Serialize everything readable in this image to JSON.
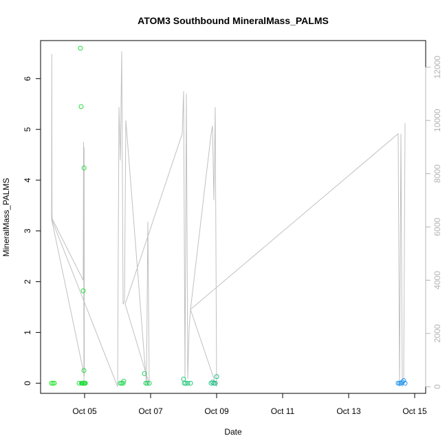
{
  "chart_data": {
    "type": "scatter",
    "title": "ATOM3 Southbound MineralMass_PALMS",
    "xlabel": "Date",
    "ylabel": "MineralMass_PALMS",
    "xlim": [
      "2017-10-03T16:00",
      "2017-10-15T08:00"
    ],
    "ylim": [
      -0.2,
      6.75
    ],
    "y2lim": [
      -250,
      13000
    ],
    "x_ticks": [
      {
        "date": "2017-10-05T00:00",
        "label": "Oct 05"
      },
      {
        "date": "2017-10-07T00:00",
        "label": "Oct 07"
      },
      {
        "date": "2017-10-09T00:00",
        "label": "Oct 09"
      },
      {
        "date": "2017-10-11T00:00",
        "label": "Oct 11"
      },
      {
        "date": "2017-10-13T00:00",
        "label": "Oct 13"
      },
      {
        "date": "2017-10-15T00:00",
        "label": "Oct 15"
      }
    ],
    "y_ticks": [
      0,
      1,
      2,
      3,
      4,
      5,
      6
    ],
    "y2_ticks": [
      0,
      2000,
      4000,
      6000,
      8000,
      10000,
      12000
    ],
    "grid": false,
    "legend": "none",
    "colors": {
      "altitude_line": "#c0c0c0",
      "right_axis": "#b4b4b4",
      "points_start": "#22e622",
      "points_end": "#1e90ff"
    },
    "points": [
      {
        "date": "2017-10-04T00:00",
        "y": 0.0
      },
      {
        "date": "2017-10-04T01:00",
        "y": 0.0
      },
      {
        "date": "2017-10-04T02:00",
        "y": 0.0
      },
      {
        "date": "2017-10-04T20:00",
        "y": 0.0
      },
      {
        "date": "2017-10-04T21:00",
        "y": 6.6
      },
      {
        "date": "2017-10-04T21:30",
        "y": 5.45
      },
      {
        "date": "2017-10-04T21:45",
        "y": 0.0
      },
      {
        "date": "2017-10-04T22:00",
        "y": 0.0
      },
      {
        "date": "2017-10-04T22:30",
        "y": 0.0
      },
      {
        "date": "2017-10-04T23:00",
        "y": 1.82
      },
      {
        "date": "2017-10-04T23:15",
        "y": 0.0
      },
      {
        "date": "2017-10-04T23:30",
        "y": 0.25
      },
      {
        "date": "2017-10-04T23:40",
        "y": 4.24
      },
      {
        "date": "2017-10-04T23:50",
        "y": 0.0
      },
      {
        "date": "2017-10-05T00:10",
        "y": 0.0
      },
      {
        "date": "2017-10-05T00:30",
        "y": 0.0
      },
      {
        "date": "2017-10-06T02:00",
        "y": 0.0
      },
      {
        "date": "2017-10-06T03:00",
        "y": 0.0
      },
      {
        "date": "2017-10-06T04:00",
        "y": 0.0
      },
      {
        "date": "2017-10-06T04:30",
        "y": 0.04
      },
      {
        "date": "2017-10-06T19:30",
        "y": 0.19
      },
      {
        "date": "2017-10-06T20:30",
        "y": 0.0
      },
      {
        "date": "2017-10-06T21:30",
        "y": 0.0
      },
      {
        "date": "2017-10-06T23:00",
        "y": 0.0
      },
      {
        "date": "2017-10-08T00:00",
        "y": 0.08
      },
      {
        "date": "2017-10-08T00:30",
        "y": 0.0
      },
      {
        "date": "2017-10-08T01:30",
        "y": 0.0
      },
      {
        "date": "2017-10-08T03:00",
        "y": 0.0
      },
      {
        "date": "2017-10-08T05:00",
        "y": 0.0
      },
      {
        "date": "2017-10-08T20:00",
        "y": 0.0
      },
      {
        "date": "2017-10-08T21:00",
        "y": 0.02
      },
      {
        "date": "2017-10-08T22:00",
        "y": 0.0
      },
      {
        "date": "2017-10-08T23:00",
        "y": 0.0
      },
      {
        "date": "2017-10-09T00:00",
        "y": 0.13
      },
      {
        "date": "2017-10-14T12:00",
        "y": 0.0
      },
      {
        "date": "2017-10-14T13:00",
        "y": 0.0
      },
      {
        "date": "2017-10-14T14:00",
        "y": 0.0
      },
      {
        "date": "2017-10-14T15:00",
        "y": 0.02
      },
      {
        "date": "2017-10-14T16:00",
        "y": 0.05
      },
      {
        "date": "2017-10-14T17:00",
        "y": 0.0
      }
    ],
    "altitude_series": [
      {
        "date": "2017-10-04T00:00",
        "alt": 6300
      },
      {
        "date": "2017-10-04T00:10",
        "alt": 12500
      },
      {
        "date": "2017-10-04T00:20",
        "alt": 6500
      },
      {
        "date": "2017-10-04T00:30",
        "alt": 6300
      },
      {
        "date": "2017-10-04T23:00",
        "alt": 4000
      },
      {
        "date": "2017-10-04T23:15",
        "alt": 9200
      },
      {
        "date": "2017-10-04T23:30",
        "alt": 200
      },
      {
        "date": "2017-10-04T23:40",
        "alt": 9000
      },
      {
        "date": "2017-10-04T23:50",
        "alt": 400
      },
      {
        "date": "2017-10-04T00:00",
        "alt": 6300
      },
      {
        "date": "2017-10-06T00:00",
        "alt": 0
      },
      {
        "date": "2017-10-06T01:00",
        "alt": 10500
      },
      {
        "date": "2017-10-06T02:00",
        "alt": 8500
      },
      {
        "date": "2017-10-06T03:00",
        "alt": 12600
      },
      {
        "date": "2017-10-06T04:00",
        "alt": 3100
      },
      {
        "date": "2017-10-06T05:00",
        "alt": 3200
      },
      {
        "date": "2017-10-06T06:00",
        "alt": 10000
      },
      {
        "date": "2017-10-06T21:00",
        "alt": 100
      },
      {
        "date": "2017-10-06T22:00",
        "alt": 6200
      },
      {
        "date": "2017-10-06T23:00",
        "alt": 100
      },
      {
        "date": "2017-10-06T05:30",
        "alt": 3100
      },
      {
        "date": "2017-10-07T23:00",
        "alt": 9500
      },
      {
        "date": "2017-10-08T00:00",
        "alt": 11100
      },
      {
        "date": "2017-10-08T01:00",
        "alt": 300
      },
      {
        "date": "2017-10-08T02:00",
        "alt": 11000
      },
      {
        "date": "2017-10-08T03:00",
        "alt": 300
      },
      {
        "date": "2017-10-08T04:00",
        "alt": 2200
      },
      {
        "date": "2017-10-08T05:00",
        "alt": 2900
      },
      {
        "date": "2017-10-08T20:00",
        "alt": 9500
      },
      {
        "date": "2017-10-08T21:00",
        "alt": 9800
      },
      {
        "date": "2017-10-08T22:00",
        "alt": 7000
      },
      {
        "date": "2017-10-08T23:00",
        "alt": 10500
      },
      {
        "date": "2017-10-09T00:00",
        "alt": 0
      },
      {
        "date": "2017-10-08T05:00",
        "alt": 2900
      },
      {
        "date": "2017-10-14T12:00",
        "alt": 9500
      },
      {
        "date": "2017-10-14T13:00",
        "alt": 0
      },
      {
        "date": "2017-10-14T14:00",
        "alt": 9500
      },
      {
        "date": "2017-10-14T15:00",
        "alt": 0
      },
      {
        "date": "2017-10-14T16:00",
        "alt": 100
      },
      {
        "date": "2017-10-14T17:00",
        "alt": 9900
      }
    ]
  }
}
